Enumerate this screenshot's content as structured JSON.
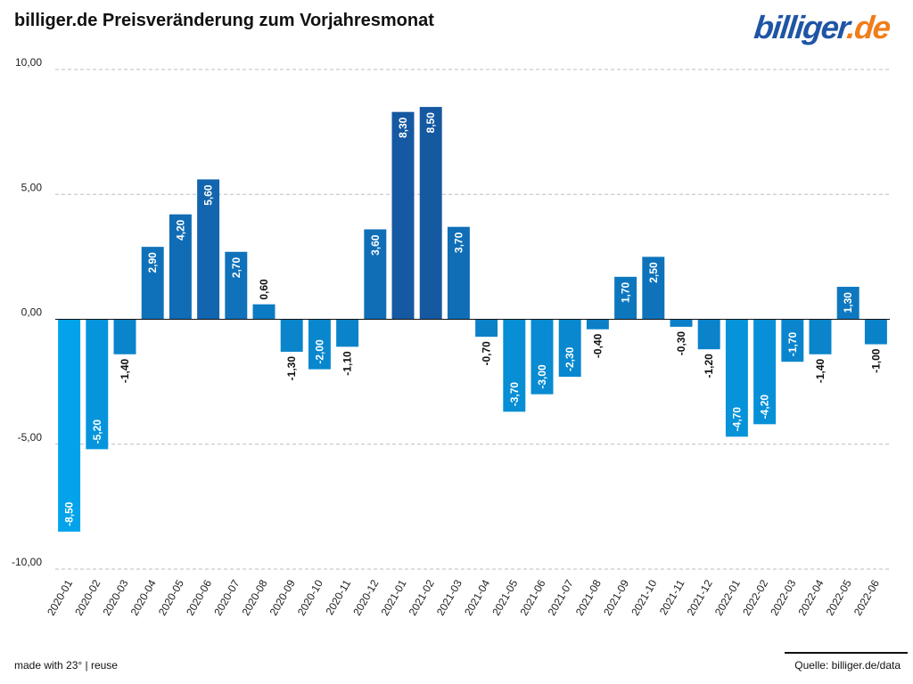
{
  "header": {
    "title": "billiger.de Preisveränderung zum Vorjahresmonat",
    "logo_text_main": "billiger",
    "logo_text_accent": ".de"
  },
  "footer": {
    "left": "made with 23° | reuse",
    "right": "Quelle: billiger.de/data"
  },
  "colors": {
    "logo_blue": "#1f55a5",
    "logo_orange": "#f07d1a"
  },
  "chart_data": {
    "type": "bar",
    "title": "billiger.de Preisveränderung zum Vorjahresmonat",
    "xlabel": "",
    "ylabel": "",
    "ylim": [
      -10,
      10
    ],
    "yticks": [
      10,
      5,
      0,
      -5,
      -10
    ],
    "ytick_labels": [
      "10,00",
      "5,00",
      "0,00",
      "-5,00",
      "-10,00"
    ],
    "grid": true,
    "categories": [
      "2020-01",
      "2020-02",
      "2020-03",
      "2020-04",
      "2020-05",
      "2020-06",
      "2020-07",
      "2020-08",
      "2020-09",
      "2020-10",
      "2020-11",
      "2020-12",
      "2021-01",
      "2021-02",
      "2021-03",
      "2021-04",
      "2021-05",
      "2021-06",
      "2021-07",
      "2021-08",
      "2021-09",
      "2021-10",
      "2021-11",
      "2021-12",
      "2022-01",
      "2022-02",
      "2022-03",
      "2022-04",
      "2022-05",
      "2022-06"
    ],
    "values": [
      -8.5,
      -5.2,
      -1.4,
      2.9,
      4.2,
      5.6,
      2.7,
      0.6,
      -1.3,
      -2.0,
      -1.1,
      3.6,
      8.3,
      8.5,
      3.7,
      -0.7,
      -3.7,
      -3.0,
      -2.3,
      -0.4,
      1.7,
      2.5,
      -0.3,
      -1.2,
      -4.7,
      -4.2,
      -1.7,
      -1.4,
      1.3,
      -1.0
    ],
    "labels": [
      "-8,50",
      "-5,20",
      "-1,40",
      "2,90",
      "4,20",
      "5,60",
      "2,70",
      "0,60",
      "-1,30",
      "-2,00",
      "-1,10",
      "3,60",
      "8,30",
      "8,50",
      "3,70",
      "-0,70",
      "-3,70",
      "-3,00",
      "-2,30",
      "-0,40",
      "1,70",
      "2,50",
      "-0,30",
      "-1,20",
      "-4,70",
      "-4,20",
      "-1,70",
      "-1,40",
      "1,30",
      "-1,00"
    ]
  }
}
